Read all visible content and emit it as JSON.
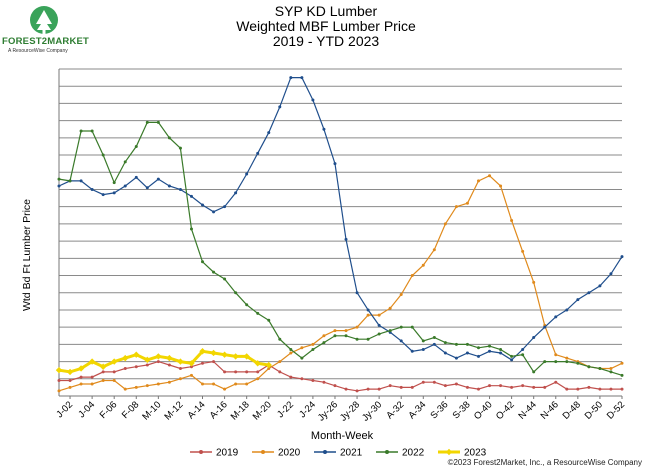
{
  "header": {
    "title": "SYP KD Lumber",
    "subtitle": "Weighted MBF Lumber Price",
    "period": "2019 - YTD 2023",
    "logo_text": "FOREST2MARKET",
    "logo_sub": "A ResourceWise Company"
  },
  "footer": {
    "copyright": "©2023 Forest2Market, Inc., a ResourceWise Company"
  },
  "chart_data": {
    "type": "line",
    "title": "SYP KD Lumber Weighted MBF Lumber Price 2019 - YTD 2023",
    "xlabel": "Month-Week",
    "ylabel": "Wtd Bd Ft Lumber Price",
    "tick_labels": [
      "J-02",
      "J-04",
      "F-06",
      "F-08",
      "M-10",
      "M-12",
      "A-14",
      "A-16",
      "M-18",
      "M-20",
      "J-22",
      "J-24",
      "Jy-26",
      "Jy-28",
      "Jy-30",
      "A-32",
      "A-34",
      "S-36",
      "S-38",
      "O-40",
      "O-42",
      "N-44",
      "N-46",
      "D-48",
      "D-50",
      "D-52"
    ],
    "n_points": 52,
    "ylim": [
      0,
      19
    ],
    "grid": true,
    "legend_position": "bottom",
    "colors": {
      "2019": "#c0504d",
      "2020": "#e08a1c",
      "2021": "#1f4e8c",
      "2022": "#3a7a2a",
      "2023": "#f2d600"
    },
    "series": [
      {
        "name": "2019",
        "values": [
          0.9,
          0.9,
          1.1,
          1.1,
          1.4,
          1.4,
          1.6,
          1.7,
          1.8,
          2.0,
          1.8,
          1.6,
          1.7,
          1.9,
          2.0,
          1.4,
          1.4,
          1.4,
          1.4,
          1.8,
          1.4,
          1.1,
          1.0,
          0.9,
          0.8,
          0.6,
          0.4,
          0.3,
          0.4,
          0.4,
          0.6,
          0.5,
          0.5,
          0.8,
          0.8,
          0.6,
          0.7,
          0.5,
          0.4,
          0.6,
          0.6,
          0.5,
          0.6,
          0.5,
          0.5,
          0.8,
          0.4,
          0.4,
          0.5,
          0.4,
          0.4,
          0.4
        ]
      },
      {
        "name": "2020",
        "values": [
          0.3,
          0.5,
          0.7,
          0.7,
          0.9,
          0.9,
          0.4,
          0.5,
          0.6,
          0.7,
          0.8,
          1.0,
          1.2,
          0.7,
          0.7,
          0.4,
          0.7,
          0.7,
          1.0,
          1.6,
          2.0,
          2.5,
          2.8,
          3.0,
          3.5,
          3.8,
          3.8,
          4.0,
          4.7,
          4.7,
          5.1,
          5.9,
          7.0,
          7.6,
          8.5,
          10.0,
          11.0,
          11.2,
          12.5,
          12.8,
          12.2,
          10.2,
          8.4,
          6.6,
          4.1,
          2.4,
          2.2,
          2.0,
          1.7,
          1.6,
          1.6,
          1.9
        ]
      },
      {
        "name": "2021",
        "values": [
          12.2,
          12.5,
          12.5,
          12.0,
          11.7,
          11.8,
          12.2,
          12.7,
          12.1,
          12.6,
          12.2,
          12.0,
          11.6,
          11.1,
          10.7,
          11.0,
          11.8,
          12.9,
          14.1,
          15.3,
          16.8,
          18.5,
          18.5,
          17.2,
          15.5,
          13.5,
          9.1,
          6.0,
          5.0,
          4.1,
          3.7,
          3.2,
          2.6,
          2.7,
          3.0,
          2.5,
          2.2,
          2.5,
          2.3,
          2.6,
          2.5,
          2.1,
          2.7,
          3.4,
          4.0,
          4.6,
          5.0,
          5.6,
          6.0,
          6.4,
          7.1,
          8.1
        ]
      },
      {
        "name": "2022",
        "values": [
          12.6,
          12.5,
          15.4,
          15.4,
          14.0,
          12.4,
          13.6,
          14.5,
          15.9,
          15.9,
          15.0,
          14.4,
          9.7,
          7.8,
          7.2,
          6.8,
          6.0,
          5.3,
          4.8,
          4.4,
          3.3,
          2.7,
          2.2,
          2.7,
          3.1,
          3.5,
          3.5,
          3.3,
          3.3,
          3.6,
          3.8,
          4.0,
          4.0,
          3.2,
          3.4,
          3.1,
          3.0,
          3.0,
          2.8,
          2.9,
          2.7,
          2.3,
          2.4,
          1.4,
          2.0,
          2.0,
          2.0,
          1.9,
          1.7,
          1.6,
          1.4,
          1.2
        ]
      },
      {
        "name": "2023",
        "values": [
          1.5,
          1.4,
          1.6,
          2.0,
          1.7,
          2.0,
          2.2,
          2.4,
          2.1,
          2.3,
          2.2,
          2.0,
          1.9,
          2.6,
          2.5,
          2.4,
          2.3,
          2.3,
          1.9,
          1.8
        ]
      }
    ]
  }
}
